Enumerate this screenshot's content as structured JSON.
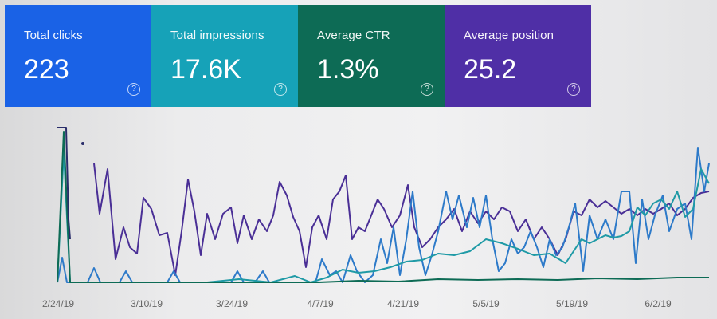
{
  "metrics": [
    {
      "label": "Total clicks",
      "value": "223",
      "color": "#1a62e6",
      "icon": "help-icon"
    },
    {
      "label": "Total impressions",
      "value": "17.6K",
      "color": "#16a2b8",
      "icon": "help-icon"
    },
    {
      "label": "Average CTR",
      "value": "1.3%",
      "color": "#0d6b55",
      "icon": "help-icon"
    },
    {
      "label": "Average position",
      "value": "25.2",
      "color": "#4f2fa6",
      "icon": "help-icon"
    }
  ],
  "chart_data": {
    "type": "line",
    "x_tick_labels": [
      "2/24/19",
      "3/10/19",
      "3/24/19",
      "4/7/19",
      "4/21/19",
      "5/5/19",
      "5/19/19",
      "6/2/19"
    ],
    "series": [
      {
        "color": "#4a2f96",
        "points": [
          [
            118,
            205
          ],
          [
            125,
            268
          ],
          [
            135,
            212
          ],
          [
            145,
            325
          ],
          [
            155,
            285
          ],
          [
            163,
            310
          ],
          [
            172,
            318
          ],
          [
            180,
            248
          ],
          [
            190,
            262
          ],
          [
            200,
            295
          ],
          [
            210,
            292
          ],
          [
            220,
            345
          ],
          [
            228,
            290
          ],
          [
            236,
            225
          ],
          [
            244,
            265
          ],
          [
            252,
            320
          ],
          [
            260,
            268
          ],
          [
            270,
            300
          ],
          [
            280,
            268
          ],
          [
            290,
            260
          ],
          [
            298,
            305
          ],
          [
            306,
            270
          ],
          [
            316,
            300
          ],
          [
            325,
            275
          ],
          [
            335,
            290
          ],
          [
            343,
            270
          ],
          [
            351,
            228
          ],
          [
            360,
            245
          ],
          [
            368,
            272
          ],
          [
            376,
            290
          ],
          [
            384,
            335
          ],
          [
            392,
            285
          ],
          [
            400,
            270
          ],
          [
            410,
            300
          ],
          [
            418,
            250
          ],
          [
            426,
            240
          ],
          [
            434,
            220
          ],
          [
            442,
            300
          ],
          [
            450,
            285
          ],
          [
            458,
            290
          ],
          [
            466,
            270
          ],
          [
            474,
            250
          ],
          [
            482,
            262
          ],
          [
            492,
            285
          ],
          [
            502,
            270
          ],
          [
            512,
            232
          ],
          [
            520,
            285
          ],
          [
            530,
            310
          ],
          [
            540,
            300
          ],
          [
            550,
            285
          ],
          [
            560,
            275
          ],
          [
            570,
            262
          ],
          [
            580,
            290
          ],
          [
            590,
            265
          ],
          [
            600,
            280
          ],
          [
            610,
            265
          ],
          [
            620,
            275
          ],
          [
            630,
            260
          ],
          [
            640,
            265
          ],
          [
            650,
            290
          ],
          [
            660,
            275
          ],
          [
            670,
            300
          ],
          [
            680,
            285
          ],
          [
            690,
            300
          ],
          [
            700,
            320
          ],
          [
            710,
            300
          ],
          [
            720,
            265
          ],
          [
            730,
            270
          ],
          [
            740,
            250
          ],
          [
            750,
            260
          ],
          [
            760,
            252
          ],
          [
            770,
            260
          ],
          [
            780,
            268
          ],
          [
            790,
            262
          ],
          [
            800,
            270
          ],
          [
            810,
            262
          ],
          [
            820,
            268
          ],
          [
            830,
            262
          ],
          [
            840,
            255
          ],
          [
            850,
            270
          ],
          [
            860,
            262
          ],
          [
            870,
            248
          ],
          [
            880,
            242
          ],
          [
            890,
            240
          ]
        ]
      },
      {
        "color": "#2d7ac9",
        "points": [
          [
            72,
            354
          ],
          [
            78,
            323
          ],
          [
            84,
            354
          ],
          [
            110,
            354
          ],
          [
            118,
            336
          ],
          [
            126,
            354
          ],
          [
            140,
            354
          ],
          [
            150,
            354
          ],
          [
            158,
            340
          ],
          [
            166,
            354
          ],
          [
            190,
            354
          ],
          [
            200,
            354
          ],
          [
            210,
            354
          ],
          [
            218,
            340
          ],
          [
            226,
            354
          ],
          [
            240,
            354
          ],
          [
            270,
            354
          ],
          [
            290,
            354
          ],
          [
            298,
            340
          ],
          [
            306,
            354
          ],
          [
            320,
            354
          ],
          [
            330,
            340
          ],
          [
            338,
            354
          ],
          [
            360,
            354
          ],
          [
            372,
            354
          ],
          [
            384,
            354
          ],
          [
            396,
            354
          ],
          [
            404,
            325
          ],
          [
            414,
            345
          ],
          [
            422,
            340
          ],
          [
            430,
            354
          ],
          [
            440,
            320
          ],
          [
            448,
            340
          ],
          [
            458,
            354
          ],
          [
            468,
            345
          ],
          [
            478,
            300
          ],
          [
            486,
            330
          ],
          [
            494,
            285
          ],
          [
            502,
            345
          ],
          [
            510,
            300
          ],
          [
            518,
            240
          ],
          [
            526,
            310
          ],
          [
            534,
            345
          ],
          [
            542,
            320
          ],
          [
            550,
            290
          ],
          [
            560,
            240
          ],
          [
            568,
            275
          ],
          [
            576,
            245
          ],
          [
            586,
            285
          ],
          [
            594,
            248
          ],
          [
            602,
            285
          ],
          [
            610,
            245
          ],
          [
            618,
            300
          ],
          [
            626,
            340
          ],
          [
            634,
            330
          ],
          [
            642,
            300
          ],
          [
            650,
            318
          ],
          [
            658,
            310
          ],
          [
            666,
            290
          ],
          [
            674,
            310
          ],
          [
            682,
            335
          ],
          [
            690,
            300
          ],
          [
            698,
            320
          ],
          [
            706,
            310
          ],
          [
            714,
            285
          ],
          [
            722,
            255
          ],
          [
            732,
            340
          ],
          [
            740,
            270
          ],
          [
            750,
            300
          ],
          [
            760,
            275
          ],
          [
            770,
            300
          ],
          [
            780,
            240
          ],
          [
            790,
            240
          ],
          [
            798,
            330
          ],
          [
            806,
            250
          ],
          [
            814,
            300
          ],
          [
            822,
            270
          ],
          [
            832,
            245
          ],
          [
            840,
            290
          ],
          [
            850,
            262
          ],
          [
            860,
            255
          ],
          [
            868,
            300
          ],
          [
            876,
            185
          ],
          [
            884,
            240
          ],
          [
            890,
            205
          ]
        ]
      },
      {
        "color": "#1f9aa6",
        "points": [
          [
            72,
            354
          ],
          [
            80,
            190
          ],
          [
            88,
            354
          ],
          [
            100,
            354
          ],
          [
            120,
            354
          ],
          [
            140,
            354
          ],
          [
            200,
            354
          ],
          [
            260,
            354
          ],
          [
            300,
            350
          ],
          [
            340,
            354
          ],
          [
            370,
            346
          ],
          [
            390,
            354
          ],
          [
            410,
            348
          ],
          [
            430,
            338
          ],
          [
            450,
            342
          ],
          [
            470,
            340
          ],
          [
            490,
            335
          ],
          [
            510,
            328
          ],
          [
            530,
            326
          ],
          [
            550,
            318
          ],
          [
            570,
            320
          ],
          [
            590,
            315
          ],
          [
            610,
            300
          ],
          [
            630,
            305
          ],
          [
            650,
            312
          ],
          [
            670,
            320
          ],
          [
            690,
            318
          ],
          [
            710,
            330
          ],
          [
            720,
            315
          ],
          [
            730,
            300
          ],
          [
            740,
            305
          ],
          [
            750,
            300
          ],
          [
            760,
            295
          ],
          [
            770,
            298
          ],
          [
            780,
            296
          ],
          [
            790,
            290
          ],
          [
            800,
            260
          ],
          [
            810,
            270
          ],
          [
            820,
            255
          ],
          [
            830,
            250
          ],
          [
            840,
            262
          ],
          [
            850,
            240
          ],
          [
            860,
            272
          ],
          [
            870,
            262
          ],
          [
            880,
            212
          ],
          [
            890,
            230
          ]
        ]
      },
      {
        "color": "#0d6b55",
        "points": [
          [
            72,
            354
          ],
          [
            80,
            165
          ],
          [
            88,
            354
          ],
          [
            110,
            354
          ],
          [
            200,
            354
          ],
          [
            300,
            354
          ],
          [
            400,
            354
          ],
          [
            450,
            352
          ],
          [
            500,
            353
          ],
          [
            550,
            350
          ],
          [
            600,
            351
          ],
          [
            650,
            350
          ],
          [
            700,
            351
          ],
          [
            750,
            349
          ],
          [
            800,
            350
          ],
          [
            850,
            348
          ],
          [
            890,
            348
          ]
        ]
      },
      {
        "color": "#2a2d6a",
        "points": [
          [
            72,
            160
          ],
          [
            80,
            160
          ],
          [
            83,
            160
          ],
          [
            86,
            275
          ],
          [
            88,
            300
          ]
        ]
      }
    ]
  }
}
